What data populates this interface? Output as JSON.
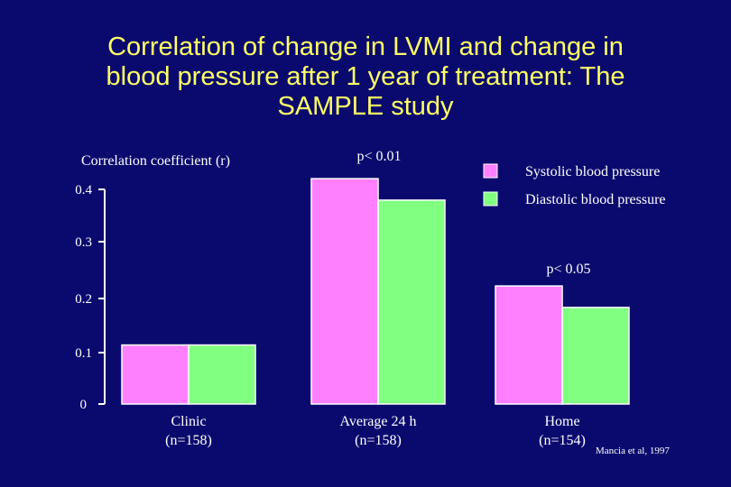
{
  "slide": {
    "title_lines": [
      "Correlation of change in LVMI and change in",
      "blood pressure after 1 year of treatment: The",
      "SAMPLE study"
    ]
  },
  "chart_data": {
    "type": "bar",
    "title": "Correlation of change in LVMI and change in blood pressure after 1 year of treatment: The SAMPLE study",
    "ylabel": "Correlation coefficient (r)",
    "xlabel": "",
    "ylim": [
      0,
      0.4
    ],
    "yticks": [
      "0",
      "0.1",
      "0.2",
      "0.3",
      "0.4"
    ],
    "categories": [
      {
        "line1": "Clinic",
        "line2": "(n=158)"
      },
      {
        "line1": "Average 24 h",
        "line2": "(n=158)"
      },
      {
        "line1": "Home",
        "line2": "(n=154)"
      }
    ],
    "series": [
      {
        "name": "Systolic blood pressure",
        "color": "#ff80ff",
        "values": [
          0.11,
          0.42,
          0.22
        ]
      },
      {
        "name": "Diastolic blood pressure",
        "color": "#80ff80",
        "values": [
          0.11,
          0.38,
          0.18
        ]
      }
    ],
    "annotations": [
      {
        "text": "p< 0.01",
        "category_index": 1
      },
      {
        "text": "p< 0.05",
        "category_index": 2
      }
    ],
    "legend_position": "top-right",
    "source": "Mancia et al,  1997"
  }
}
